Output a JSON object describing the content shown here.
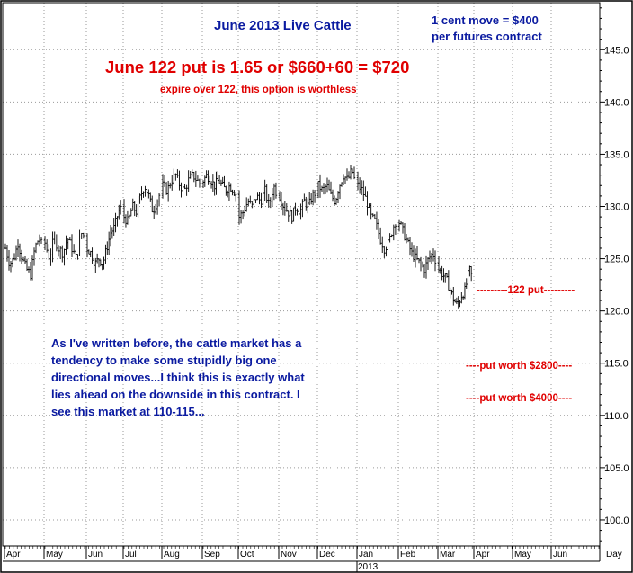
{
  "chart_data": {
    "type": "ohlc",
    "title": "June 2013 Live Cattle",
    "ylim": [
      97.5,
      149.5
    ],
    "y_ticks": [
      100,
      105,
      110,
      115,
      120,
      125,
      130,
      135,
      140,
      145
    ],
    "x_labels": [
      "Apr",
      "May",
      "Jun",
      "Jul",
      "Aug",
      "Sep",
      "Oct",
      "Nov",
      "Dec",
      "Jan",
      "Feb",
      "Mar",
      "Apr",
      "May",
      "Jun"
    ],
    "year_label": "2013",
    "x_unit_label": "Day",
    "grid": true,
    "colors": {
      "bars": "#000000",
      "grid": "#9a9a9a",
      "blue_text": "#0a1aa0",
      "red_text": "#e00000"
    },
    "series": [
      {
        "month": "Apr",
        "closes": [
          126,
          124.5,
          125,
          126.5,
          125,
          124,
          123.5,
          126,
          127,
          126
        ]
      },
      {
        "month": "May",
        "closes": [
          126.5,
          125,
          127,
          126,
          125.5,
          127,
          126,
          125,
          127.5,
          127
        ]
      },
      {
        "month": "Jun",
        "closes": [
          126,
          125.5,
          124.5,
          125,
          124.5,
          126,
          127.5,
          128,
          129.5,
          130
        ]
      },
      {
        "month": "Jul",
        "closes": [
          129,
          128.5,
          130,
          129.5,
          131,
          132,
          131,
          129.5,
          130.5,
          131.5
        ]
      },
      {
        "month": "Aug",
        "closes": [
          132,
          131.5,
          132.5,
          133,
          132,
          131.5,
          132.5,
          133,
          132.5,
          132
        ]
      },
      {
        "month": "Sep",
        "closes": [
          132.5,
          133,
          132.5,
          132,
          132.5,
          132,
          131.5,
          132,
          131.5,
          131
        ]
      },
      {
        "month": "Oct",
        "closes": [
          129,
          129.5,
          130.5,
          130,
          131,
          130.5,
          131.5,
          130,
          132,
          131
        ]
      },
      {
        "month": "Nov",
        "closes": [
          131,
          130,
          129.5,
          129,
          130,
          129.5,
          130.5,
          130,
          131,
          131.5
        ]
      },
      {
        "month": "Dec",
        "closes": [
          132,
          131.5,
          132,
          131,
          130.5,
          132,
          133,
          132.5,
          133.5,
          132
        ]
      },
      {
        "month": "Jan",
        "closes": [
          132,
          131.5,
          130.5,
          129,
          128.5,
          127,
          126,
          126.5,
          128,
          129
        ]
      },
      {
        "month": "Feb",
        "closes": [
          128.5,
          127.5,
          126.5,
          125.5,
          125,
          124.5,
          124,
          125,
          125.5,
          124.5
        ]
      },
      {
        "month": "Mar",
        "closes": [
          124,
          123.5,
          123,
          122,
          121,
          120.5,
          121.5,
          122,
          124,
          123
        ]
      }
    ],
    "reference_lines": [
      {
        "value": 122,
        "label": "---------122 put---------"
      },
      {
        "value": 115,
        "label": "----put worth $2800----"
      },
      {
        "value": 112,
        "label": "----put worth $4000----"
      }
    ]
  },
  "annotations": {
    "title": "June 2013 Live Cattle",
    "cent_move_line1": "1 cent move = $400",
    "cent_move_line2": "per futures contract",
    "headline": "June 122 put is 1.65 or $660+60 = $720",
    "subheadline": "expire over 122, this option is worthless",
    "commentary": [
      "As I've written before, the cattle market has a",
      "tendency to make some stupidly big one",
      "directional moves...I think this is exactly what",
      "lies ahead on the downside in this contract. I",
      "see this market at 110-115..."
    ]
  }
}
